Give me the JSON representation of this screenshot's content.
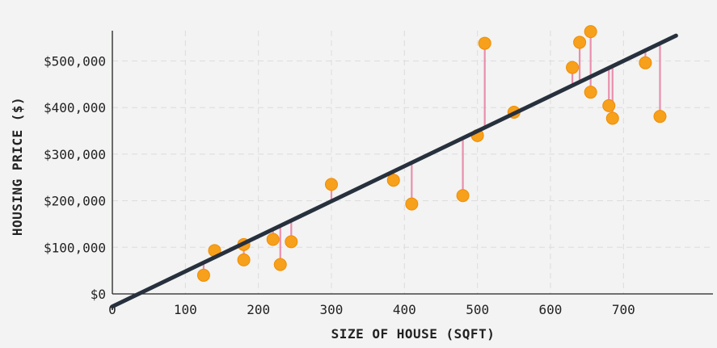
{
  "chart_data": {
    "type": "scatter",
    "title": "",
    "xlabel": "SIZE OF HOUSE (SQFT)",
    "ylabel": "HOUSING PRICE ($)",
    "xlim": [
      0,
      825
    ],
    "ylim": [
      0,
      560000
    ],
    "x_ticks": [
      0,
      100,
      200,
      300,
      400,
      500,
      600,
      700
    ],
    "x_tick_labels": [
      "0",
      "100",
      "200",
      "300",
      "400",
      "500",
      "600",
      "700"
    ],
    "y_ticks": [
      0,
      100000,
      200000,
      300000,
      400000,
      500000
    ],
    "y_tick_labels": [
      "$0",
      "$100,000",
      "$200,000",
      "$300,000",
      "$400,000",
      "$500,000"
    ],
    "grid": true,
    "points": [
      {
        "x": 125,
        "y": 40000
      },
      {
        "x": 140,
        "y": 93000
      },
      {
        "x": 180,
        "y": 106000
      },
      {
        "x": 180,
        "y": 73000
      },
      {
        "x": 220,
        "y": 117000
      },
      {
        "x": 230,
        "y": 63000
      },
      {
        "x": 245,
        "y": 112000
      },
      {
        "x": 300,
        "y": 235000
      },
      {
        "x": 385,
        "y": 244000
      },
      {
        "x": 410,
        "y": 193000
      },
      {
        "x": 480,
        "y": 211000
      },
      {
        "x": 500,
        "y": 340000
      },
      {
        "x": 510,
        "y": 538000
      },
      {
        "x": 550,
        "y": 390000
      },
      {
        "x": 630,
        "y": 486000
      },
      {
        "x": 640,
        "y": 540000
      },
      {
        "x": 655,
        "y": 563000
      },
      {
        "x": 655,
        "y": 433000
      },
      {
        "x": 680,
        "y": 404000
      },
      {
        "x": 685,
        "y": 377000
      },
      {
        "x": 730,
        "y": 496000
      },
      {
        "x": 750,
        "y": 381000
      }
    ],
    "regression": {
      "slope": 753,
      "intercept": -27000,
      "x_start": 0,
      "x_end": 772
    },
    "residuals_shown": true,
    "colors": {
      "point": "#f7a01b",
      "point_stroke": "#f08c00",
      "line": "#27303d",
      "residual": "#e98fae",
      "grid": "#dcdcdc",
      "background": "#f2f3f2"
    }
  }
}
